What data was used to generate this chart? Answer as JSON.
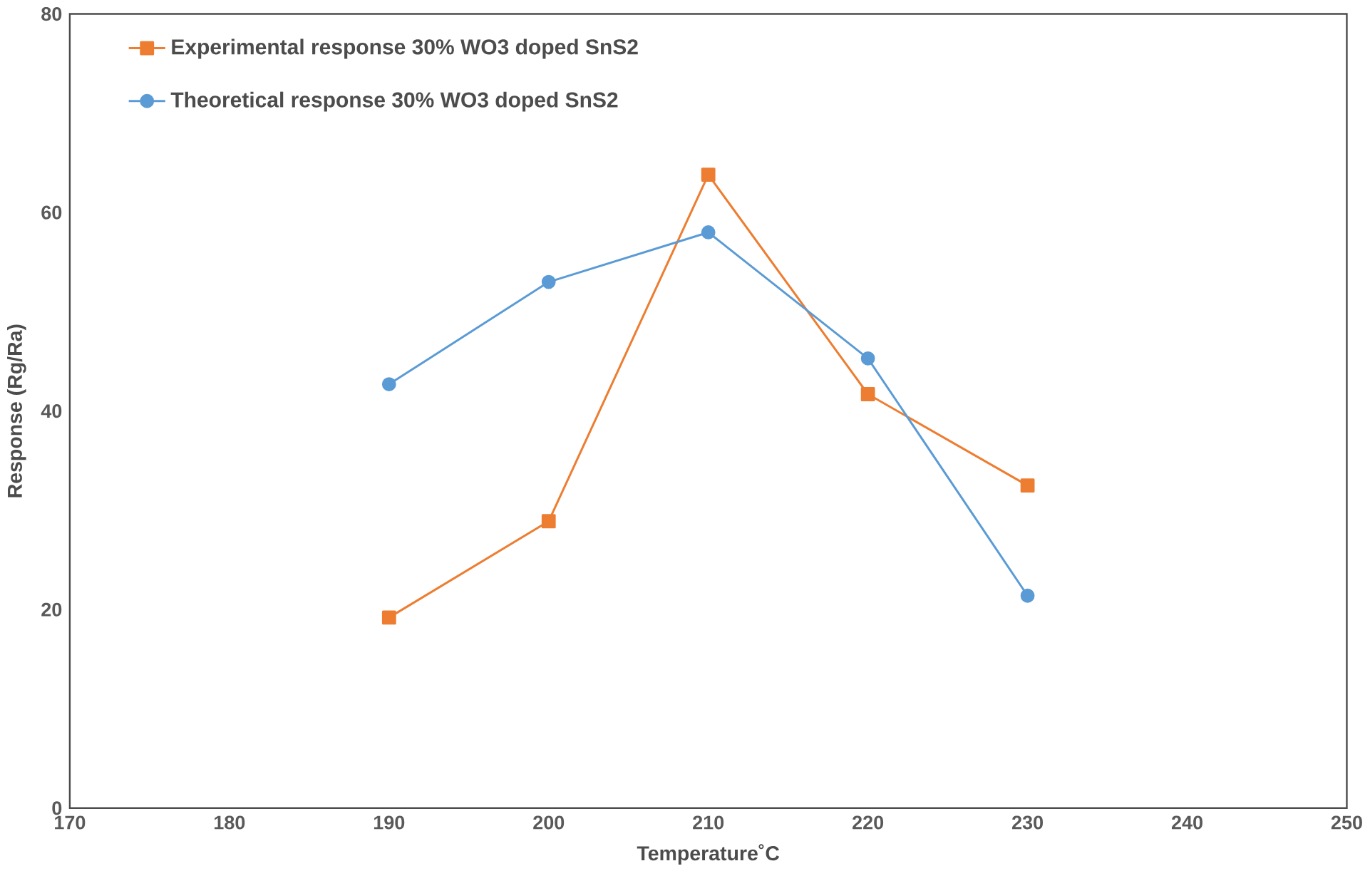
{
  "chart_data": {
    "type": "line",
    "xlabel": "Temperature˚C",
    "ylabel": "Response (Rg/Ra)",
    "x": [
      190,
      200,
      210,
      220,
      230
    ],
    "series": [
      {
        "name": "Experimental response 30% WO3 doped SnS2",
        "color": "#ed7d31",
        "marker": "square",
        "values": [
          19.2,
          28.9,
          63.8,
          41.7,
          32.5
        ]
      },
      {
        "name": "Theoretical response 30% WO3 doped SnS2",
        "color": "#5b9bd5",
        "marker": "circle",
        "values": [
          42.7,
          53.0,
          58.0,
          45.3,
          21.4
        ]
      }
    ],
    "xlim": [
      170,
      250
    ],
    "xticks": [
      170,
      180,
      190,
      200,
      210,
      220,
      230,
      240,
      250
    ],
    "ylim": [
      0,
      80
    ],
    "yticks": [
      0,
      20,
      40,
      60,
      80
    ],
    "grid": false,
    "legend": "top left"
  }
}
